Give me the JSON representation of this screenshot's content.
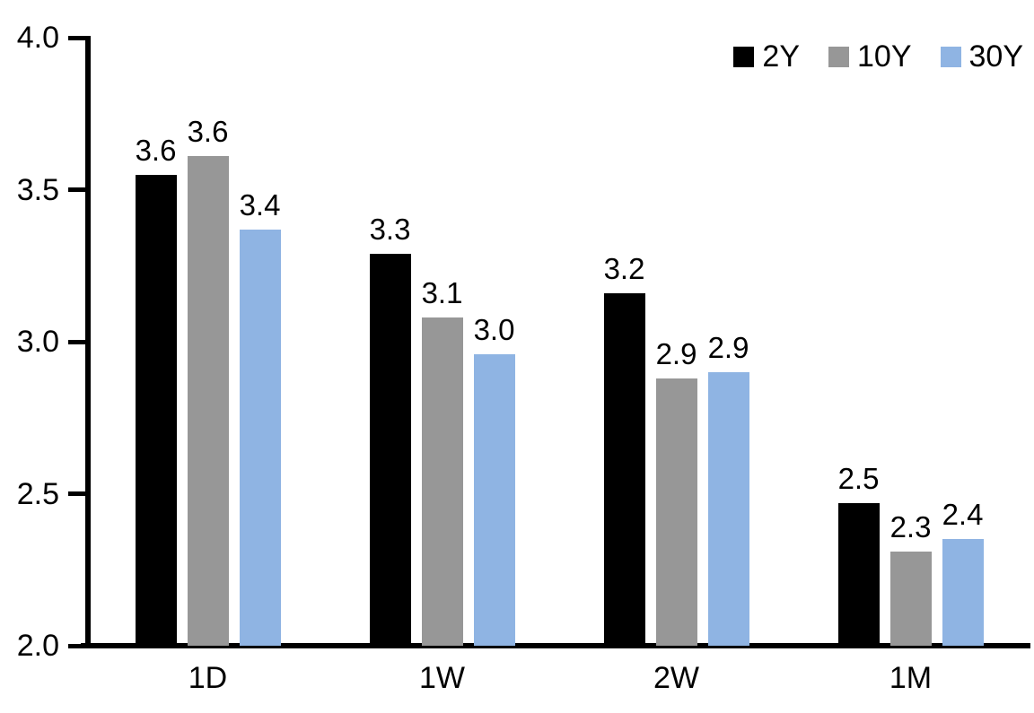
{
  "chart_data": {
    "type": "bar",
    "title": "",
    "categories": [
      "1D",
      "1W",
      "2W",
      "1M"
    ],
    "series": [
      {
        "name": "2Y",
        "color": "#000000",
        "values": [
          3.55,
          3.29,
          3.16,
          2.47
        ],
        "labels": [
          "3.6",
          "3.3",
          "3.2",
          "2.5"
        ]
      },
      {
        "name": "10Y",
        "color": "#979797",
        "values": [
          3.61,
          3.08,
          2.88,
          2.31
        ],
        "labels": [
          "3.6",
          "3.1",
          "2.9",
          "2.3"
        ]
      },
      {
        "name": "30Y",
        "color": "#8FB4E3",
        "values": [
          3.37,
          2.96,
          2.9,
          2.35
        ],
        "labels": [
          "3.4",
          "3.0",
          "2.9",
          "2.4"
        ]
      }
    ],
    "ylim": [
      2.0,
      4.0
    ],
    "yticks": [
      {
        "value": 4.0,
        "label": "4.0"
      },
      {
        "value": 3.5,
        "label": "3.5"
      },
      {
        "value": 3.0,
        "label": "3.0"
      },
      {
        "value": 2.5,
        "label": "2.5"
      },
      {
        "value": 2.0,
        "label": "2.0"
      }
    ],
    "grid": false,
    "legend_position": "top-right",
    "axis_color": "#000000",
    "background_color": "#ffffff"
  }
}
